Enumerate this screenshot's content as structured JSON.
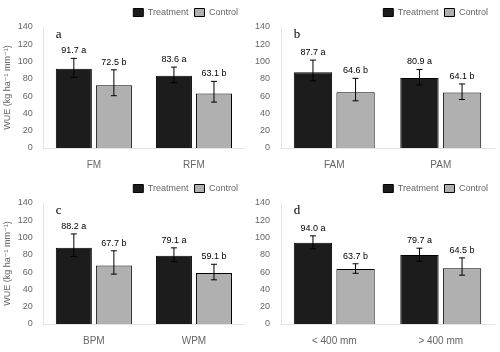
{
  "chart_data": [
    {
      "type": "bar",
      "title": "a",
      "categories": [
        "FM",
        "RFM"
      ],
      "series": [
        {
          "name": "Treatment",
          "color": "#1c1c1c",
          "values": [
            91.7,
            83.6
          ],
          "errors_lo": [
            10,
            8
          ],
          "errors_hi": [
            12,
            10
          ],
          "value_labels": [
            "91.7 a",
            "83.6 a"
          ]
        },
        {
          "name": "Control",
          "color": "#b0b0b0",
          "values": [
            72.5,
            63.1
          ],
          "errors_lo": [
            12,
            10
          ],
          "errors_hi": [
            18,
            14
          ],
          "value_labels": [
            "72.5 b",
            "63.1 b"
          ]
        }
      ],
      "ylabel": "WUE (kg ha⁻¹ mm⁻¹)",
      "ylim": [
        0,
        140
      ],
      "yticks": [
        0,
        20,
        40,
        60,
        80,
        100,
        120,
        140
      ],
      "grid": false,
      "legend": "upper right",
      "data_labels": true
    },
    {
      "type": "bar",
      "title": "b",
      "categories": [
        "FAM",
        "PAM"
      ],
      "series": [
        {
          "name": "Treatment",
          "color": "#1c1c1c",
          "values": [
            87.7,
            80.9
          ],
          "errors_lo": [
            10,
            8
          ],
          "errors_hi": [
            14,
            10
          ],
          "value_labels": [
            "87.7 a",
            "80.9 a"
          ]
        },
        {
          "name": "Control",
          "color": "#b0b0b0",
          "values": [
            64.6,
            64.1
          ],
          "errors_lo": [
            10,
            8
          ],
          "errors_hi": [
            16,
            10
          ],
          "value_labels": [
            "64.6 b",
            "64.1 b"
          ]
        }
      ],
      "ylim": [
        0,
        140
      ],
      "yticks": [
        0,
        20,
        40,
        60,
        80,
        100,
        120,
        140
      ],
      "grid": false,
      "legend": "upper right",
      "data_labels": true
    },
    {
      "type": "bar",
      "title": "c",
      "categories": [
        "BPM",
        "WPM"
      ],
      "series": [
        {
          "name": "Treatment",
          "color": "#1c1c1c",
          "values": [
            88.2,
            79.1
          ],
          "errors_lo": [
            10,
            7
          ],
          "errors_hi": [
            16,
            9
          ],
          "value_labels": [
            "88.2 a",
            "79.1 a"
          ]
        },
        {
          "name": "Control",
          "color": "#b0b0b0",
          "values": [
            67.7,
            59.1
          ],
          "errors_lo": [
            10,
            8
          ],
          "errors_hi": [
            17,
            10
          ],
          "value_labels": [
            "67.7 b",
            "59.1 b"
          ]
        }
      ],
      "ylabel": "WUE (kg ha⁻¹ mm⁻¹)",
      "ylim": [
        0,
        140
      ],
      "yticks": [
        0,
        20,
        40,
        60,
        80,
        100,
        120,
        140
      ],
      "grid": false,
      "legend": "upper right",
      "data_labels": true
    },
    {
      "type": "bar",
      "title": "d",
      "categories": [
        "< 400 mm",
        "> 400 mm"
      ],
      "series": [
        {
          "name": "Treatment",
          "color": "#1c1c1c",
          "values": [
            94.0,
            79.7
          ],
          "errors_lo": [
            7,
            7
          ],
          "errors_hi": [
            8,
            8
          ],
          "value_labels": [
            "94.0 a",
            "79.7 a"
          ]
        },
        {
          "name": "Control",
          "color": "#b0b0b0",
          "values": [
            63.7,
            64.5
          ],
          "errors_lo": [
            5,
            8
          ],
          "errors_hi": [
            6,
            12
          ],
          "value_labels": [
            "63.7 b",
            "64.5 b"
          ]
        }
      ],
      "ylim": [
        0,
        140
      ],
      "yticks": [
        0,
        20,
        40,
        60,
        80,
        100,
        120,
        140
      ],
      "grid": false,
      "legend": "upper right",
      "data_labels": true
    }
  ]
}
